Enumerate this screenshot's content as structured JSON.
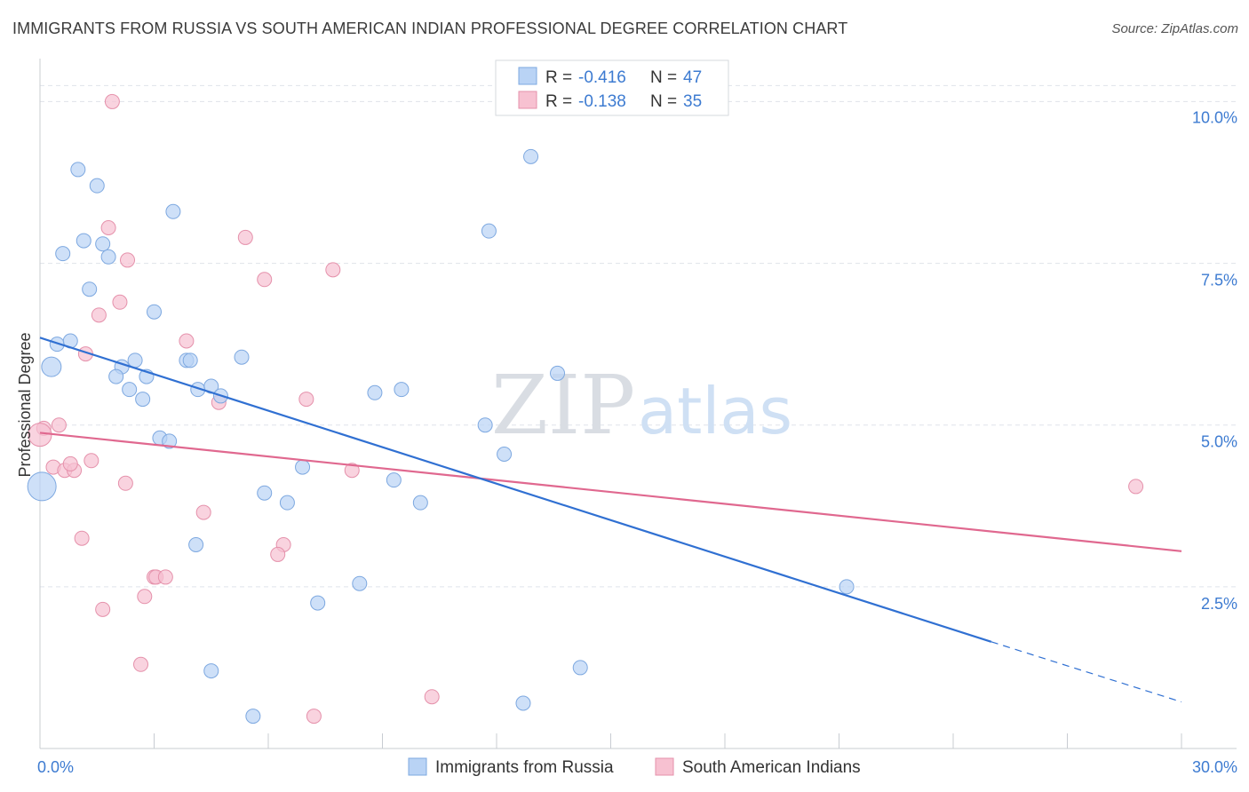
{
  "header": {
    "title": "IMMIGRANTS FROM RUSSIA VS SOUTH AMERICAN INDIAN PROFESSIONAL DEGREE CORRELATION CHART",
    "source": "Source: ZipAtlas.com"
  },
  "watermark": {
    "zip": "ZIP",
    "atlas": "atlas"
  },
  "colors": {
    "blue": "#3070d2",
    "blue_fill": "#b9d3f5",
    "pink": "#e0688f",
    "pink_fill": "#f7c1d1",
    "tick_text": "#3d7bd1",
    "grid": "#dfe3ea"
  },
  "chart_data": {
    "type": "scatter",
    "title": "IMMIGRANTS FROM RUSSIA VS SOUTH AMERICAN INDIAN PROFESSIONAL DEGREE CORRELATION CHART",
    "xlabel": "",
    "ylabel": "Professional Degree",
    "xlim": [
      0,
      30
    ],
    "ylim": [
      0,
      10.5
    ],
    "x_tick_labels": [
      "0.0%",
      "30.0%"
    ],
    "y_ticks": [
      2.5,
      5.0,
      7.5,
      10.0
    ],
    "y_tick_labels": [
      "2.5%",
      "5.0%",
      "7.5%",
      "10.0%"
    ],
    "grid": true,
    "legend": [
      {
        "name": "Immigrants from Russia",
        "r_label": "R =",
        "r": "-0.416",
        "n_label": "N =",
        "n": "47"
      },
      {
        "name": "South American Indians",
        "r_label": "R =",
        "r": "-0.138",
        "n_label": "N =",
        "n": "35"
      }
    ],
    "series": [
      {
        "name": "Immigrants from Russia",
        "color": "#3070d2",
        "points": [
          [
            1.0,
            8.95
          ],
          [
            1.5,
            8.7
          ],
          [
            0.6,
            7.65
          ],
          [
            1.15,
            7.85
          ],
          [
            1.65,
            7.8
          ],
          [
            1.8,
            7.6
          ],
          [
            3.5,
            8.3
          ],
          [
            1.3,
            7.1
          ],
          [
            3.0,
            6.75
          ],
          [
            0.45,
            6.25
          ],
          [
            0.8,
            6.3
          ],
          [
            0.3,
            5.9
          ],
          [
            2.5,
            6.0
          ],
          [
            2.15,
            5.9
          ],
          [
            2.0,
            5.75
          ],
          [
            2.8,
            5.75
          ],
          [
            2.35,
            5.55
          ],
          [
            2.7,
            5.4
          ],
          [
            3.85,
            6.0
          ],
          [
            3.95,
            6.0
          ],
          [
            5.3,
            6.05
          ],
          [
            4.15,
            5.55
          ],
          [
            4.5,
            5.6
          ],
          [
            4.75,
            5.45
          ],
          [
            8.8,
            5.5
          ],
          [
            9.5,
            5.55
          ],
          [
            11.8,
            8.0
          ],
          [
            12.9,
            9.15
          ],
          [
            13.6,
            5.8
          ],
          [
            3.15,
            4.8
          ],
          [
            3.4,
            4.75
          ],
          [
            11.7,
            5.0
          ],
          [
            12.2,
            4.55
          ],
          [
            0.05,
            4.05
          ],
          [
            6.9,
            4.35
          ],
          [
            9.3,
            4.15
          ],
          [
            5.9,
            3.95
          ],
          [
            6.5,
            3.8
          ],
          [
            10.0,
            3.8
          ],
          [
            4.1,
            3.15
          ],
          [
            8.4,
            2.55
          ],
          [
            7.3,
            2.25
          ],
          [
            21.2,
            2.5
          ],
          [
            14.2,
            1.25
          ],
          [
            4.5,
            1.2
          ],
          [
            5.6,
            0.5
          ],
          [
            12.7,
            0.7
          ]
        ],
        "trend": {
          "x": [
            0,
            25
          ],
          "y": [
            6.35,
            1.65
          ]
        },
        "trend_extension": {
          "x": [
            25,
            30
          ],
          "y": [
            1.65,
            0.72
          ]
        }
      },
      {
        "name": "South American Indians",
        "color": "#e0688f",
        "points": [
          [
            1.9,
            10.0
          ],
          [
            1.8,
            8.05
          ],
          [
            5.4,
            7.9
          ],
          [
            2.3,
            7.55
          ],
          [
            7.7,
            7.4
          ],
          [
            5.9,
            7.25
          ],
          [
            2.1,
            6.9
          ],
          [
            1.55,
            6.7
          ],
          [
            3.85,
            6.3
          ],
          [
            1.2,
            6.1
          ],
          [
            0.5,
            5.0
          ],
          [
            0.1,
            4.95
          ],
          [
            0.0,
            4.85
          ],
          [
            4.7,
            5.35
          ],
          [
            7.0,
            5.4
          ],
          [
            0.35,
            4.35
          ],
          [
            0.65,
            4.3
          ],
          [
            0.9,
            4.3
          ],
          [
            0.8,
            4.4
          ],
          [
            1.35,
            4.45
          ],
          [
            8.2,
            4.3
          ],
          [
            2.25,
            4.1
          ],
          [
            4.3,
            3.65
          ],
          [
            28.8,
            4.05
          ],
          [
            1.1,
            3.25
          ],
          [
            6.4,
            3.15
          ],
          [
            6.25,
            3.0
          ],
          [
            3.0,
            2.65
          ],
          [
            3.05,
            2.65
          ],
          [
            3.3,
            2.65
          ],
          [
            2.75,
            2.35
          ],
          [
            1.65,
            2.15
          ],
          [
            2.65,
            1.3
          ],
          [
            10.3,
            0.8
          ],
          [
            7.2,
            0.5
          ]
        ],
        "trend": {
          "x": [
            0,
            30
          ],
          "y": [
            4.88,
            3.05
          ]
        }
      }
    ]
  }
}
